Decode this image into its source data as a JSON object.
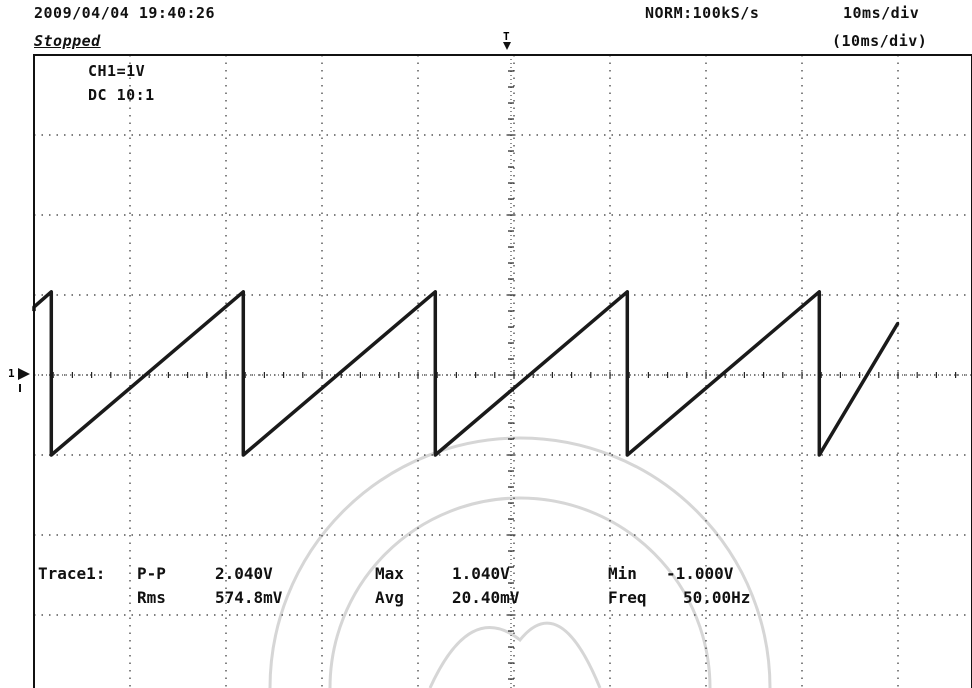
{
  "header": {
    "datetime": "2009/04/04  19:40:26",
    "status": "Stopped",
    "acquisition": "NORM:100kS/s",
    "timebase": "10ms/div",
    "timebase_sub": "(10ms/div)"
  },
  "channel": {
    "label": "CH1=1V",
    "coupling": "DC  10:1"
  },
  "markers": {
    "trigger": "T",
    "ground": "1"
  },
  "measurements": {
    "trace_label": "Trace1:",
    "row1": [
      {
        "name": "P-P",
        "value": "2.040V"
      },
      {
        "name": "Max",
        "value": "1.040V"
      },
      {
        "name": "Min",
        "value": "-1.000V"
      }
    ],
    "row2": [
      {
        "name": "Rms",
        "value": "574.8mV"
      },
      {
        "name": "Avg",
        "value": "20.40mV"
      },
      {
        "name": "Freq",
        "value": "50.00Hz"
      }
    ]
  },
  "chart_data": {
    "type": "line",
    "title": "",
    "xlabel": "",
    "ylabel": "",
    "x_unit": "ms",
    "y_unit": "V",
    "xlim": [
      -40,
      50
    ],
    "ylim": [
      -4,
      4
    ],
    "grid": true,
    "series": [
      {
        "waveform": "sawtooth",
        "frequency_hz": 50,
        "period_ms": 20,
        "x": [
          -40.0,
          -40.0,
          -38.2,
          -38.2,
          -18.2,
          -18.2,
          1.8,
          1.8,
          21.8,
          21.8,
          41.8,
          41.8,
          50.0
        ],
        "y": [
          0.8,
          0.85,
          1.04,
          -1.0,
          1.04,
          -1.0,
          1.04,
          -1.0,
          1.04,
          -1.0,
          1.04,
          -1.0,
          0.65
        ],
        "color": "#1a1a1a"
      }
    ]
  }
}
